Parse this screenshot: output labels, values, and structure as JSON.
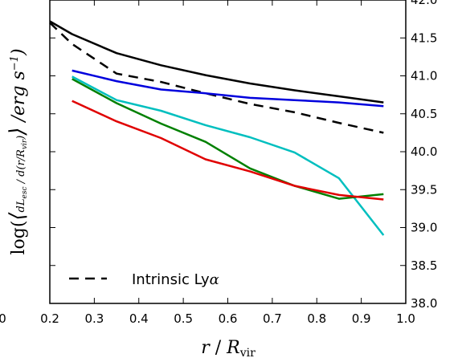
{
  "chart_data": {
    "type": "line",
    "title": "",
    "xlabel": "r / R_vir",
    "ylabel": "log( ⟨ dL_esc / d(r/R_vir) ⟩ / erg s⁻¹ )",
    "xlim": [
      0.2,
      1.0
    ],
    "ylim": [
      38.0,
      42.0
    ],
    "x_ticks": [
      "0.2",
      "0.3",
      "0.4",
      "0.5",
      "0.6",
      "0.7",
      "0.8",
      "0.9",
      "1.0"
    ],
    "y_ticks": [
      "38.0",
      "38.5",
      "39.0",
      "39.5",
      "40.0",
      "40.5",
      "41.0",
      "41.5",
      "42.0"
    ],
    "x_axis_left_label": "0",
    "legend": {
      "placement": "lower-left",
      "entries": [
        {
          "label": "Intrinsic Ly",
          "symbol": "α",
          "style": "dashed",
          "color": "#000000"
        }
      ]
    },
    "series": [
      {
        "color": "#000000",
        "style": "solid",
        "x": [
          0.2,
          0.25,
          0.35,
          0.45,
          0.55,
          0.65,
          0.75,
          0.85,
          0.95
        ],
        "y": [
          41.72,
          41.55,
          41.3,
          41.14,
          41.01,
          40.9,
          40.81,
          40.73,
          40.65
        ]
      },
      {
        "name": "Intrinsic Lyα",
        "color": "#000000",
        "style": "dashed",
        "x": [
          0.2,
          0.25,
          0.35,
          0.45,
          0.55,
          0.65,
          0.75,
          0.85,
          0.95
        ],
        "y": [
          41.7,
          41.42,
          41.03,
          40.92,
          40.77,
          40.63,
          40.52,
          40.38,
          40.25
        ]
      },
      {
        "color": "#0000dd",
        "style": "solid",
        "x": [
          0.25,
          0.35,
          0.45,
          0.55,
          0.65,
          0.75,
          0.85,
          0.95
        ],
        "y": [
          41.07,
          40.93,
          40.82,
          40.77,
          40.71,
          40.68,
          40.65,
          40.6
        ]
      },
      {
        "color": "#00bfbf",
        "style": "solid",
        "x": [
          0.25,
          0.35,
          0.45,
          0.55,
          0.65,
          0.75,
          0.85,
          0.95
        ],
        "y": [
          40.99,
          40.68,
          40.54,
          40.35,
          40.19,
          39.99,
          39.65,
          38.9
        ]
      },
      {
        "color": "#008000",
        "style": "solid",
        "x": [
          0.25,
          0.35,
          0.45,
          0.55,
          0.65,
          0.75,
          0.85,
          0.95
        ],
        "y": [
          40.96,
          40.64,
          40.37,
          40.13,
          39.78,
          39.55,
          39.38,
          39.44
        ]
      },
      {
        "color": "#e00000",
        "style": "solid",
        "x": [
          0.25,
          0.35,
          0.45,
          0.55,
          0.65,
          0.75,
          0.85,
          0.95
        ],
        "y": [
          40.67,
          40.4,
          40.18,
          39.9,
          39.74,
          39.55,
          39.43,
          39.37
        ]
      }
    ]
  }
}
